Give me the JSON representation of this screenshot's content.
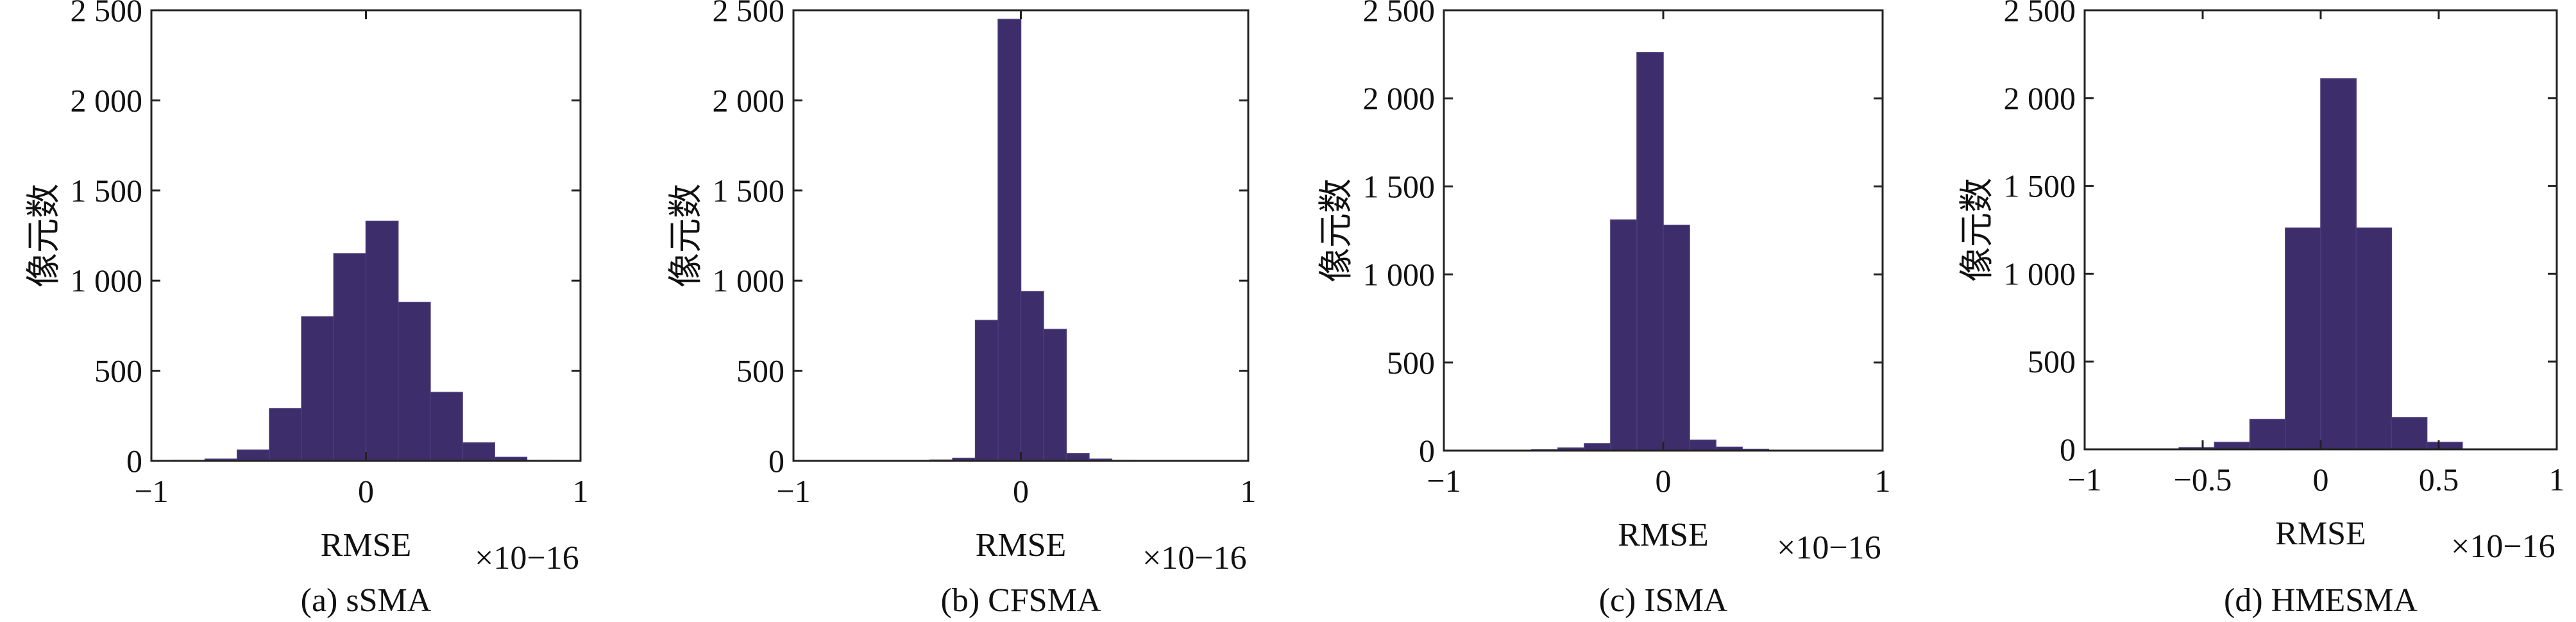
{
  "chart_data": [
    {
      "type": "bar",
      "caption": "(a) sSMA",
      "xlabel": "RMSE",
      "ylabel": "像元数",
      "x_multiplier": "×10−16",
      "xlim": [
        -1,
        1
      ],
      "ylim": [
        0,
        2500
      ],
      "xticks": [
        -1,
        0,
        1
      ],
      "xtick_labels": [
        "−1",
        "0",
        "1"
      ],
      "yticks": [
        0,
        500,
        1000,
        1500,
        2000,
        2500
      ],
      "ytick_labels": [
        "0",
        "500",
        "1 000",
        "1 500",
        "2 000",
        "2 500"
      ],
      "bin_edges": [
        -0.9,
        -0.75,
        -0.6,
        -0.45,
        -0.3,
        -0.15,
        0,
        0.15,
        0.3,
        0.45,
        0.6,
        0.75,
        0.9
      ],
      "values": [
        3,
        10,
        60,
        290,
        800,
        1150,
        1330,
        880,
        380,
        100,
        20,
        3
      ],
      "bar_color": "#3d2d6b"
    },
    {
      "type": "bar",
      "caption": "(b) CFSMA",
      "xlabel": "RMSE",
      "ylabel": "像元数",
      "x_multiplier": "×10−16",
      "xlim": [
        -1,
        1
      ],
      "ylim": [
        0,
        2500
      ],
      "xticks": [
        -1,
        0,
        1
      ],
      "xtick_labels": [
        "−1",
        "0",
        "1"
      ],
      "yticks": [
        0,
        500,
        1000,
        1500,
        2000,
        2500
      ],
      "ytick_labels": [
        "0",
        "500",
        "1 000",
        "1 500",
        "2 000",
        "2 500"
      ],
      "bin_edges": [
        -0.5,
        -0.4,
        -0.3,
        -0.2,
        -0.1,
        0,
        0.1,
        0.2,
        0.3,
        0.4,
        0.5
      ],
      "values": [
        2,
        5,
        15,
        780,
        2450,
        940,
        730,
        40,
        10,
        3
      ],
      "bar_color": "#3d2d6b"
    },
    {
      "type": "bar",
      "caption": "(c) ISMA",
      "xlabel": "RMSE",
      "ylabel": "像元数",
      "x_multiplier": "×10−16",
      "xlim": [
        -1,
        1
      ],
      "ylim": [
        0,
        2500
      ],
      "xticks": [
        -1,
        0,
        1
      ],
      "xtick_labels": [
        "−1",
        "0",
        "1"
      ],
      "yticks": [
        0,
        500,
        1000,
        1500,
        2000,
        2500
      ],
      "ytick_labels": [
        "0",
        "500",
        "1 000",
        "1 500",
        "2 000",
        "2 500"
      ],
      "bin_edges": [
        -0.6,
        -0.48,
        -0.36,
        -0.24,
        -0.12,
        0,
        0.12,
        0.24,
        0.36,
        0.48,
        0.6
      ],
      "values": [
        5,
        15,
        40,
        1310,
        2260,
        1280,
        60,
        20,
        8,
        2
      ],
      "bar_color": "#3d2d6b"
    },
    {
      "type": "bar",
      "caption": "(d) HMESMA",
      "xlabel": "RMSE",
      "ylabel": "像元数",
      "x_multiplier": "×10−16",
      "xlim": [
        -1,
        1
      ],
      "ylim": [
        0,
        2500
      ],
      "xticks": [
        -1,
        -0.5,
        0,
        0.5,
        1
      ],
      "xtick_labels": [
        "−1",
        "−0.5",
        "0",
        "0.5",
        "1"
      ],
      "yticks": [
        0,
        500,
        1000,
        1500,
        2000,
        2500
      ],
      "ytick_labels": [
        "0",
        "500",
        "1 000",
        "1 500",
        "2 000",
        "2 500"
      ],
      "bin_edges": [
        -0.6,
        -0.45,
        -0.3,
        -0.15,
        0,
        0.15,
        0.3,
        0.45,
        0.6
      ],
      "values": [
        10,
        40,
        170,
        1260,
        2110,
        1260,
        180,
        40
      ],
      "bar_color": "#3d2d6b"
    }
  ]
}
